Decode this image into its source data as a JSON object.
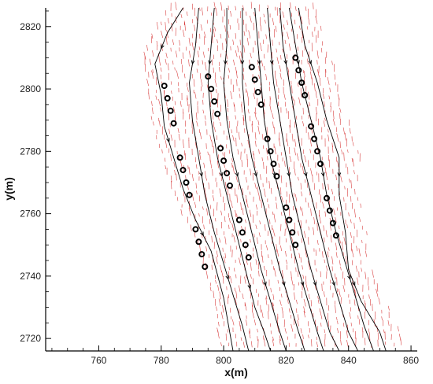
{
  "chart_data": {
    "type": "scatter",
    "title": "",
    "xlabel": "x(m)",
    "ylabel": "y(m)",
    "xlim": [
      743,
      862
    ],
    "ylim": [
      2716,
      2826
    ],
    "x_ticks": [
      760,
      780,
      800,
      820,
      840,
      860
    ],
    "y_ticks": [
      2720,
      2740,
      2760,
      2780,
      2800,
      2820
    ],
    "grid": false,
    "colors": {
      "markers": "#000000",
      "streamlines": "#000000",
      "vectors": "#cc0000"
    },
    "series": [
      {
        "marker": "ring",
        "x": [
          781,
          782,
          783,
          784,
          786,
          787,
          788,
          789,
          791,
          792,
          793,
          794,
          795,
          796,
          797,
          798,
          799,
          800,
          801,
          802,
          805,
          806,
          807,
          808,
          809,
          810,
          811,
          812,
          814,
          815,
          816,
          817,
          820,
          821,
          822,
          823,
          823,
          824,
          825,
          826,
          828,
          829,
          830,
          831,
          833,
          834,
          835,
          836
        ],
        "y": [
          2801,
          2797,
          2793,
          2789,
          2778,
          2774,
          2770,
          2766,
          2755,
          2751,
          2747,
          2743,
          2804,
          2800,
          2796,
          2792,
          2781,
          2777,
          2773,
          2769,
          2758,
          2754,
          2750,
          2746,
          2807,
          2803,
          2799,
          2795,
          2784,
          2780,
          2776,
          2772,
          2762,
          2758,
          2754,
          2750,
          2810,
          2806,
          2802,
          2798,
          2788,
          2784,
          2780,
          2776,
          2765,
          2761,
          2757,
          2753
        ]
      }
    ],
    "streamlines": [
      {
        "x": [
          787,
          782,
          778,
          780,
          781,
          784,
          787,
          791,
          796,
          800,
          803
        ],
        "y": [
          2826,
          2818,
          2808,
          2798,
          2788,
          2778,
          2768,
          2758,
          2748,
          2733,
          2716
        ]
      },
      {
        "x": [
          792,
          791,
          789,
          790,
          792,
          794,
          797,
          800,
          803,
          806,
          808
        ],
        "y": [
          2826,
          2814,
          2802,
          2790,
          2778,
          2766,
          2754,
          2744,
          2734,
          2724,
          2716
        ]
      },
      {
        "x": [
          797,
          796,
          795,
          796,
          798,
          801,
          804,
          807,
          810,
          813,
          815
        ],
        "y": [
          2826,
          2814,
          2802,
          2790,
          2778,
          2766,
          2754,
          2742,
          2730,
          2722,
          2716
        ]
      },
      {
        "x": [
          801,
          801,
          800,
          801,
          803,
          806,
          809,
          812,
          815,
          818,
          820
        ],
        "y": [
          2826,
          2814,
          2802,
          2790,
          2778,
          2766,
          2754,
          2742,
          2732,
          2722,
          2716
        ]
      },
      {
        "x": [
          806,
          806,
          806,
          807,
          809,
          812,
          815,
          818,
          821,
          824,
          826
        ],
        "y": [
          2826,
          2814,
          2802,
          2790,
          2778,
          2766,
          2754,
          2742,
          2732,
          2722,
          2716
        ]
      },
      {
        "x": [
          810,
          811,
          812,
          813,
          815,
          818,
          821,
          824,
          827,
          830,
          832
        ],
        "y": [
          2826,
          2814,
          2802,
          2790,
          2778,
          2766,
          2754,
          2742,
          2732,
          2722,
          2716
        ]
      },
      {
        "x": [
          814,
          815,
          816,
          818,
          820,
          822,
          825,
          828,
          831,
          834,
          837
        ],
        "y": [
          2826,
          2814,
          2802,
          2790,
          2778,
          2766,
          2754,
          2742,
          2732,
          2722,
          2716
        ]
      },
      {
        "x": [
          818,
          819,
          821,
          823,
          825,
          828,
          831,
          834,
          837,
          840,
          843
        ],
        "y": [
          2826,
          2814,
          2802,
          2790,
          2778,
          2766,
          2754,
          2742,
          2732,
          2722,
          2716
        ]
      },
      {
        "x": [
          821,
          823,
          825,
          828,
          831,
          833,
          836,
          839,
          842,
          845,
          848
        ],
        "y": [
          2826,
          2814,
          2802,
          2790,
          2778,
          2766,
          2754,
          2744,
          2734,
          2724,
          2716
        ]
      },
      {
        "x": [
          824,
          826,
          830,
          833,
          837,
          837,
          839,
          840,
          844,
          850,
          852
        ],
        "y": [
          2826,
          2814,
          2802,
          2790,
          2778,
          2766,
          2754,
          2742,
          2732,
          2722,
          2716
        ]
      }
    ]
  }
}
